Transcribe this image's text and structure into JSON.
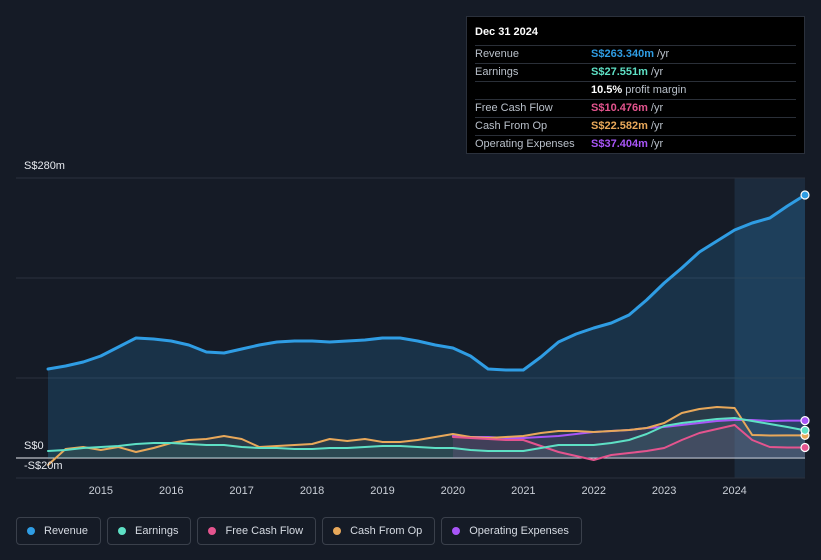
{
  "tooltip": {
    "date": "Dec 31 2024",
    "rows": [
      {
        "label": "Revenue",
        "value": "S$263.340m",
        "unit": "/yr",
        "color": "#2f9de4"
      },
      {
        "label": "Earnings",
        "value": "S$27.551m",
        "unit": "/yr",
        "color": "#5ee0c5"
      },
      {
        "label": "",
        "value": "10.5%",
        "unit": "profit margin",
        "color": "#ffffff"
      },
      {
        "label": "Free Cash Flow",
        "value": "S$10.476m",
        "unit": "/yr",
        "color": "#e4548e"
      },
      {
        "label": "Cash From Op",
        "value": "S$22.582m",
        "unit": "/yr",
        "color": "#e8a85a"
      },
      {
        "label": "Operating Expenses",
        "value": "S$37.404m",
        "unit": "/yr",
        "color": "#a855f7"
      }
    ]
  },
  "chart_data": {
    "type": "line",
    "ylim": [
      -20,
      280
    ],
    "y_tick_labels": {
      "top": "S$280m",
      "zero": "S$0",
      "bottom": "-S$20m"
    },
    "x_ticks": [
      2015,
      2016,
      2017,
      2018,
      2019,
      2020,
      2021,
      2022,
      2023,
      2024
    ],
    "highlight_start": 2024.0,
    "series": [
      {
        "name": "Revenue",
        "color": "#2f9de4",
        "fill": true,
        "points": [
          [
            2014.25,
            89
          ],
          [
            2014.5,
            92
          ],
          [
            2014.75,
            96
          ],
          [
            2015.0,
            102
          ],
          [
            2015.25,
            111
          ],
          [
            2015.5,
            120
          ],
          [
            2015.75,
            119
          ],
          [
            2016.0,
            117
          ],
          [
            2016.25,
            113
          ],
          [
            2016.5,
            106
          ],
          [
            2016.75,
            105
          ],
          [
            2017.0,
            109
          ],
          [
            2017.25,
            113
          ],
          [
            2017.5,
            116
          ],
          [
            2017.75,
            117
          ],
          [
            2018.0,
            117
          ],
          [
            2018.25,
            116
          ],
          [
            2018.5,
            117
          ],
          [
            2018.75,
            118
          ],
          [
            2019.0,
            120
          ],
          [
            2019.25,
            120
          ],
          [
            2019.5,
            117
          ],
          [
            2019.75,
            113
          ],
          [
            2020.0,
            110
          ],
          [
            2020.25,
            102
          ],
          [
            2020.5,
            89
          ],
          [
            2020.75,
            88
          ],
          [
            2021.0,
            88
          ],
          [
            2021.25,
            101
          ],
          [
            2021.5,
            116
          ],
          [
            2021.75,
            124
          ],
          [
            2022.0,
            130
          ],
          [
            2022.25,
            135
          ],
          [
            2022.5,
            143
          ],
          [
            2022.75,
            158
          ],
          [
            2023.0,
            175
          ],
          [
            2023.25,
            190
          ],
          [
            2023.5,
            206
          ],
          [
            2023.75,
            217
          ],
          [
            2024.0,
            228
          ],
          [
            2024.25,
            235
          ],
          [
            2024.5,
            240
          ],
          [
            2024.75,
            252
          ],
          [
            2025.0,
            263
          ]
        ]
      },
      {
        "name": "Earnings",
        "color": "#5ee0c5",
        "fill": false,
        "points": [
          [
            2014.25,
            7
          ],
          [
            2014.5,
            8
          ],
          [
            2014.75,
            10
          ],
          [
            2015.0,
            11
          ],
          [
            2015.25,
            12
          ],
          [
            2015.5,
            14
          ],
          [
            2015.75,
            15
          ],
          [
            2016.0,
            15
          ],
          [
            2016.25,
            14
          ],
          [
            2016.5,
            13
          ],
          [
            2016.75,
            13
          ],
          [
            2017.0,
            11
          ],
          [
            2017.25,
            10
          ],
          [
            2017.5,
            10
          ],
          [
            2017.75,
            9
          ],
          [
            2018.0,
            9
          ],
          [
            2018.25,
            10
          ],
          [
            2018.5,
            10
          ],
          [
            2018.75,
            11
          ],
          [
            2019.0,
            12
          ],
          [
            2019.25,
            12
          ],
          [
            2019.5,
            11
          ],
          [
            2019.75,
            10
          ],
          [
            2020.0,
            10
          ],
          [
            2020.25,
            8
          ],
          [
            2020.5,
            7
          ],
          [
            2020.75,
            7
          ],
          [
            2021.0,
            7
          ],
          [
            2021.25,
            10
          ],
          [
            2021.5,
            13
          ],
          [
            2021.75,
            13
          ],
          [
            2022.0,
            13
          ],
          [
            2022.25,
            15
          ],
          [
            2022.5,
            18
          ],
          [
            2022.75,
            24
          ],
          [
            2023.0,
            32
          ],
          [
            2023.25,
            35
          ],
          [
            2023.5,
            37
          ],
          [
            2023.75,
            39
          ],
          [
            2024.0,
            40
          ],
          [
            2024.25,
            37
          ],
          [
            2024.5,
            34
          ],
          [
            2024.75,
            31
          ],
          [
            2025.0,
            27.6
          ]
        ]
      },
      {
        "name": "Free Cash Flow",
        "color": "#e4548e",
        "fill": false,
        "points": [
          [
            2020.0,
            21
          ],
          [
            2020.25,
            20
          ],
          [
            2020.5,
            19
          ],
          [
            2020.75,
            18
          ],
          [
            2021.0,
            18
          ],
          [
            2021.25,
            12
          ],
          [
            2021.5,
            6
          ],
          [
            2021.75,
            2
          ],
          [
            2022.0,
            -2
          ],
          [
            2022.25,
            3
          ],
          [
            2022.5,
            5
          ],
          [
            2022.75,
            7
          ],
          [
            2023.0,
            10
          ],
          [
            2023.25,
            18
          ],
          [
            2023.5,
            25
          ],
          [
            2023.75,
            29
          ],
          [
            2024.0,
            33
          ],
          [
            2024.25,
            18
          ],
          [
            2024.5,
            11
          ],
          [
            2024.75,
            10.5
          ],
          [
            2025.0,
            10.5
          ]
        ]
      },
      {
        "name": "Cash From Op",
        "color": "#e8a85a",
        "fill": false,
        "points": [
          [
            2014.25,
            -7
          ],
          [
            2014.5,
            9
          ],
          [
            2014.75,
            11
          ],
          [
            2015.0,
            8
          ],
          [
            2015.25,
            11
          ],
          [
            2015.5,
            6
          ],
          [
            2015.75,
            10
          ],
          [
            2016.0,
            15
          ],
          [
            2016.25,
            18
          ],
          [
            2016.5,
            19
          ],
          [
            2016.75,
            22
          ],
          [
            2017.0,
            19
          ],
          [
            2017.25,
            11
          ],
          [
            2017.5,
            12
          ],
          [
            2017.75,
            13
          ],
          [
            2018.0,
            14
          ],
          [
            2018.25,
            19
          ],
          [
            2018.5,
            17
          ],
          [
            2018.75,
            19
          ],
          [
            2019.0,
            16
          ],
          [
            2019.25,
            16
          ],
          [
            2019.5,
            18
          ],
          [
            2019.75,
            21
          ],
          [
            2020.0,
            24
          ],
          [
            2020.25,
            21
          ],
          [
            2020.5,
            20
          ],
          [
            2020.75,
            21
          ],
          [
            2021.0,
            22
          ],
          [
            2021.25,
            25
          ],
          [
            2021.5,
            27
          ],
          [
            2021.75,
            27
          ],
          [
            2022.0,
            26
          ],
          [
            2022.25,
            27
          ],
          [
            2022.5,
            28
          ],
          [
            2022.75,
            30
          ],
          [
            2023.0,
            35
          ],
          [
            2023.25,
            45
          ],
          [
            2023.5,
            49
          ],
          [
            2023.75,
            51
          ],
          [
            2024.0,
            50
          ],
          [
            2024.25,
            23
          ],
          [
            2024.5,
            22.5
          ],
          [
            2024.75,
            22.6
          ],
          [
            2025.0,
            22.6
          ]
        ]
      },
      {
        "name": "Operating Expenses",
        "color": "#a855f7",
        "fill": false,
        "points": [
          [
            2020.0,
            22
          ],
          [
            2020.25,
            21
          ],
          [
            2020.5,
            21
          ],
          [
            2020.75,
            20
          ],
          [
            2021.0,
            20
          ],
          [
            2021.25,
            21
          ],
          [
            2021.5,
            22
          ],
          [
            2021.75,
            24
          ],
          [
            2022.0,
            26
          ],
          [
            2022.25,
            27
          ],
          [
            2022.5,
            28
          ],
          [
            2022.75,
            30
          ],
          [
            2023.0,
            31
          ],
          [
            2023.25,
            33
          ],
          [
            2023.5,
            35
          ],
          [
            2023.75,
            37
          ],
          [
            2024.0,
            38
          ],
          [
            2024.25,
            38
          ],
          [
            2024.5,
            37
          ],
          [
            2024.75,
            37.4
          ],
          [
            2025.0,
            37.4
          ]
        ]
      }
    ]
  },
  "legend": [
    {
      "label": "Revenue",
      "color": "#2f9de4"
    },
    {
      "label": "Earnings",
      "color": "#5ee0c5"
    },
    {
      "label": "Free Cash Flow",
      "color": "#e4548e"
    },
    {
      "label": "Cash From Op",
      "color": "#e8a85a"
    },
    {
      "label": "Operating Expenses",
      "color": "#a855f7"
    }
  ]
}
